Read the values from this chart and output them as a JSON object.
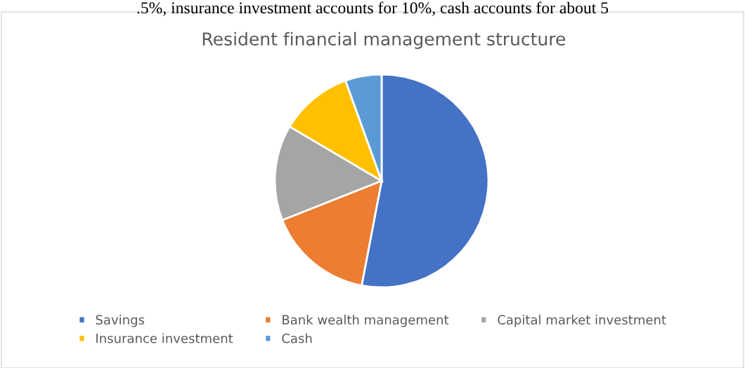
{
  "chart_data": {
    "type": "pie",
    "title": "Resident financial management structure",
    "categories": [
      "Savings",
      "Bank wealth management",
      "Capital market investment",
      "Insurance investment",
      "Cash"
    ],
    "values": [
      53,
      16,
      14.5,
      11,
      5.5
    ],
    "colors": [
      "#4472c4",
      "#ed7d31",
      "#a5a5a5",
      "#ffc000",
      "#5b9bd5"
    ],
    "legend": "bottom",
    "annotations": [
      ".5%, insurance investment accounts for 10%, cash accounts for about 5"
    ]
  }
}
